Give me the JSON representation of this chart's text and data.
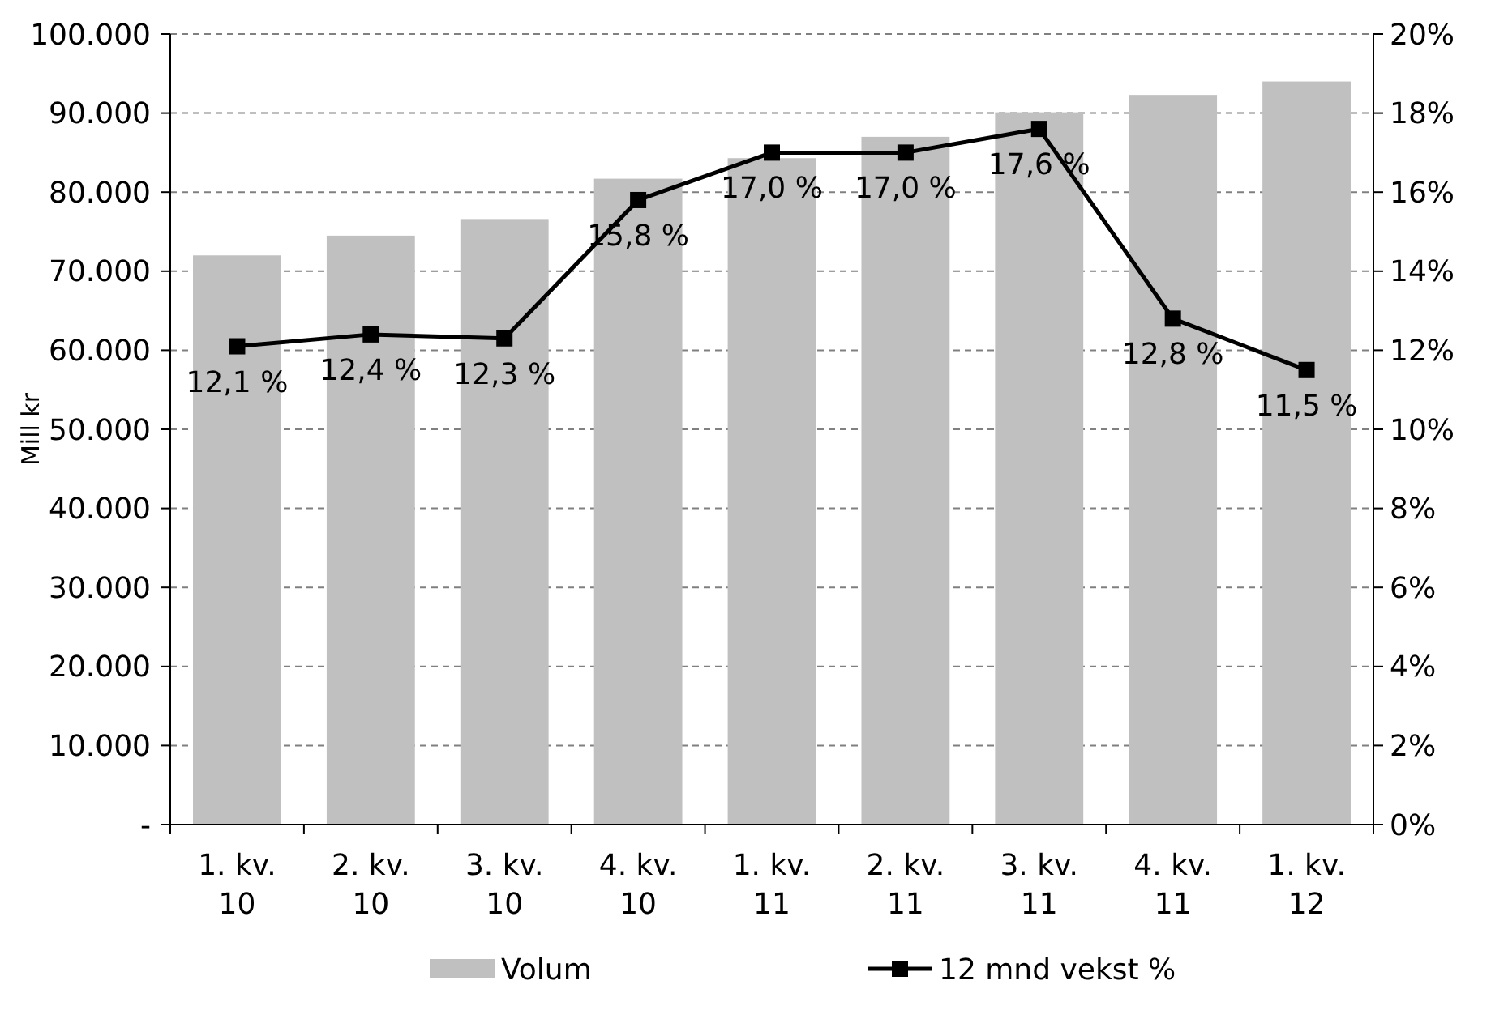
{
  "chart_data": {
    "type": "bar",
    "ylabel": "Mill kr",
    "categories": [
      "1. kv. 10",
      "2. kv. 10",
      "3. kv. 10",
      "4. kv. 10",
      "1. kv. 11",
      "2. kv. 11",
      "3. kv. 11",
      "4. kv. 11",
      "1. kv. 12"
    ],
    "series": [
      {
        "name": "Volum",
        "color": "#c0c0c0",
        "values": [
          72000,
          74500,
          76600,
          81700,
          84300,
          87000,
          90100,
          92300,
          94000
        ]
      },
      {
        "name": "12 mnd vekst %",
        "type": "line",
        "axis": "y2",
        "color": "#000000",
        "marker": "square",
        "values": [
          12.1,
          12.4,
          12.3,
          15.8,
          17.0,
          17.0,
          17.6,
          12.8,
          11.5
        ],
        "value_labels": [
          "12,1 %",
          "12,4 %",
          "12,3 %",
          "15,8 %",
          "17,0 %",
          "17,0 %",
          "17,6 %",
          "12,8 %",
          "11,5 %"
        ]
      }
    ],
    "ylim": [
      0,
      100000
    ],
    "yticks": [
      {
        "value": 0,
        "label": "-"
      },
      {
        "value": 10000,
        "label": "10.000"
      },
      {
        "value": 20000,
        "label": "20.000"
      },
      {
        "value": 30000,
        "label": "30.000"
      },
      {
        "value": 40000,
        "label": "40.000"
      },
      {
        "value": 50000,
        "label": "50.000"
      },
      {
        "value": 60000,
        "label": "60.000"
      },
      {
        "value": 70000,
        "label": "70.000"
      },
      {
        "value": 80000,
        "label": "80.000"
      },
      {
        "value": 90000,
        "label": "90.000"
      },
      {
        "value": 100000,
        "label": "100.000"
      }
    ],
    "y2lim": [
      0,
      20
    ],
    "y2ticks": [
      {
        "value": 0,
        "label": "0%"
      },
      {
        "value": 2,
        "label": "2%"
      },
      {
        "value": 4,
        "label": "4%"
      },
      {
        "value": 6,
        "label": "6%"
      },
      {
        "value": 8,
        "label": "8%"
      },
      {
        "value": 10,
        "label": "10%"
      },
      {
        "value": 12,
        "label": "12%"
      },
      {
        "value": 14,
        "label": "14%"
      },
      {
        "value": 16,
        "label": "16%"
      },
      {
        "value": 18,
        "label": "18%"
      },
      {
        "value": 20,
        "label": "20%"
      }
    ],
    "grid": "y",
    "legend": "bottom"
  }
}
